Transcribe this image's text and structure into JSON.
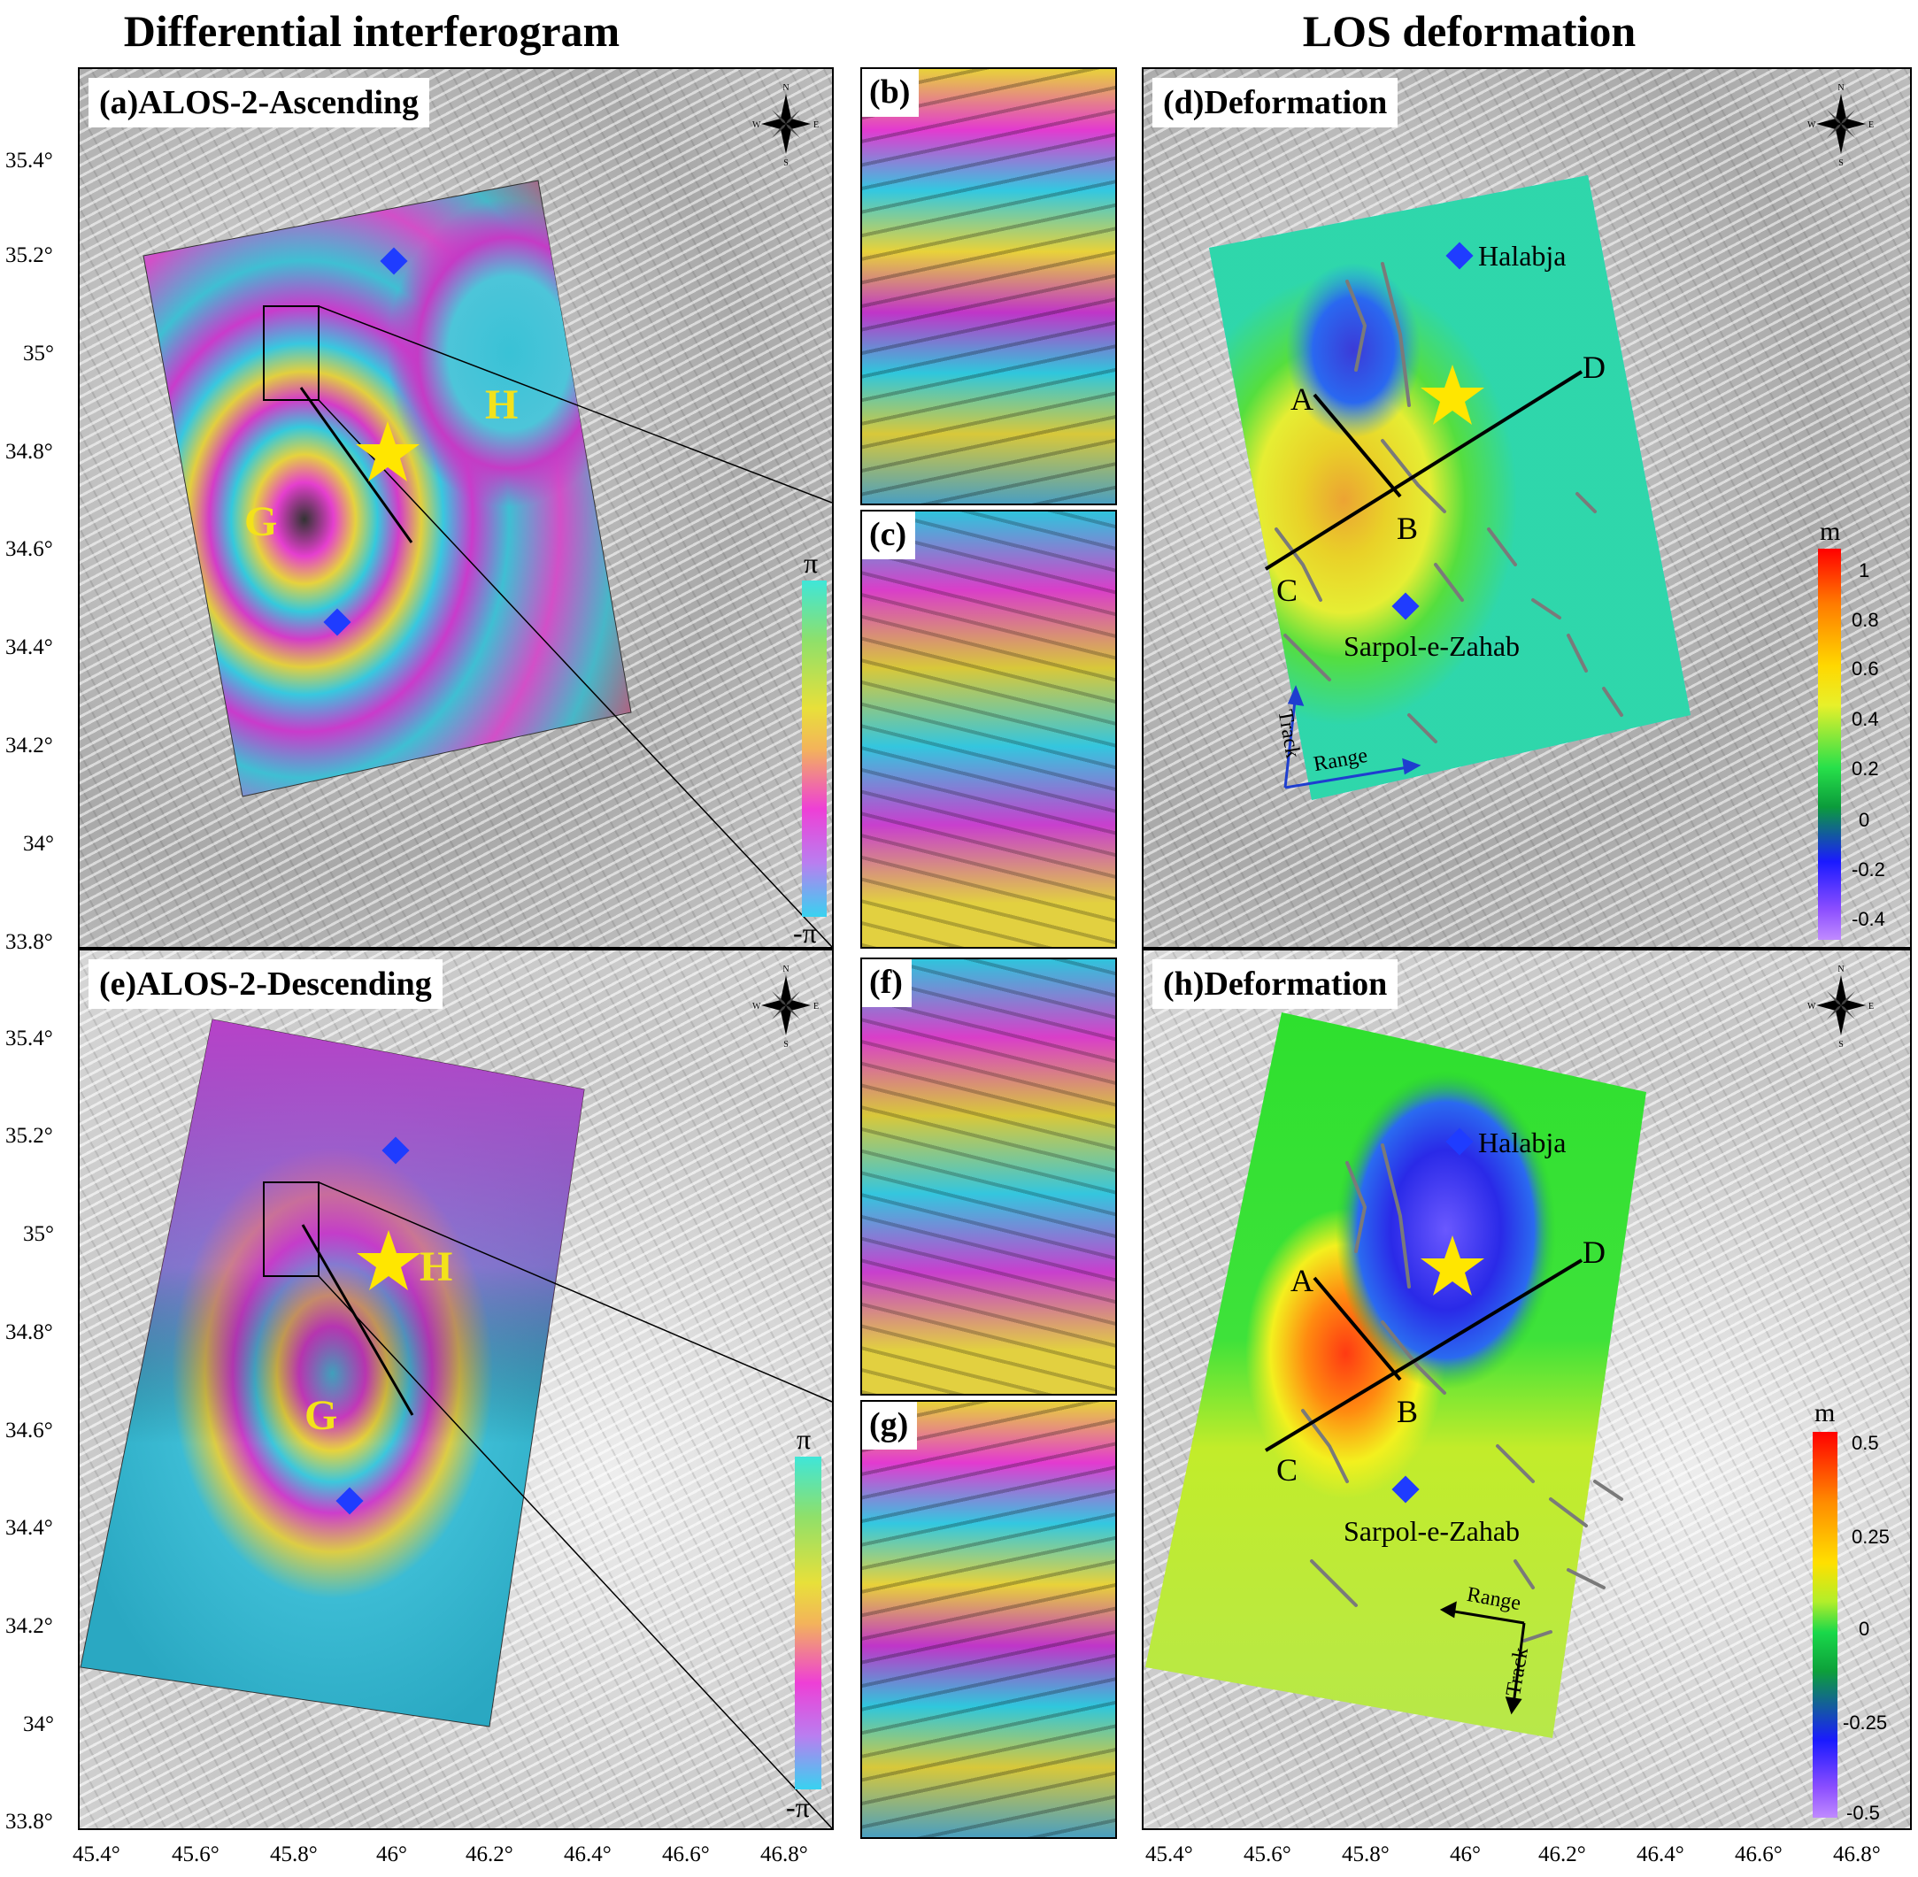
{
  "headers": {
    "left": "Differential interferogram",
    "right": "LOS deformation"
  },
  "panels": {
    "a": "(a)ALOS-2-Ascending",
    "b": "(b)",
    "c": "(c)",
    "d": "(d)Deformation",
    "e": "(e)ALOS-2-Descending",
    "f": "(f)",
    "g": "(g)",
    "h": "(h)Deformation"
  },
  "lat_ticks": [
    "35.4°",
    "35.2°",
    "35°",
    "34.8°",
    "34.6°",
    "34.4°",
    "34.2°",
    "34°",
    "33.8°"
  ],
  "lon_ticks": [
    "45.4°",
    "45.6°",
    "45.8°",
    "46°",
    "46.2°",
    "46.4°",
    "46.6°",
    "46.8°"
  ],
  "compass": {
    "n": "N",
    "s": "S",
    "e": "E",
    "w": "W"
  },
  "phase_colorbar": {
    "top": "π",
    "bottom": "-π"
  },
  "deform_colorbar_d": {
    "unit": "m",
    "ticks": [
      "1",
      "0.8",
      "0.6",
      "0.4",
      "0.2",
      "0",
      "-0.2",
      "-0.4"
    ]
  },
  "deform_colorbar_h": {
    "unit": "m",
    "ticks": [
      "0.5",
      "0.25",
      "0",
      "-0.25",
      "-0.5"
    ]
  },
  "lobes": {
    "g": "G",
    "h": "H"
  },
  "places": {
    "halabja": "Halabja",
    "sarpol": "Sarpol-e-Zahab"
  },
  "profile_points": {
    "a": "A",
    "b": "B",
    "c": "C",
    "d": "D"
  },
  "axes_arrows": {
    "track": "Track",
    "range": "Range"
  },
  "colors": {
    "epicenter_star": "#ffe600",
    "town_marker": "#1f3cff",
    "fault_lines": "#7a7a7a",
    "profile_lines": "#000000"
  }
}
